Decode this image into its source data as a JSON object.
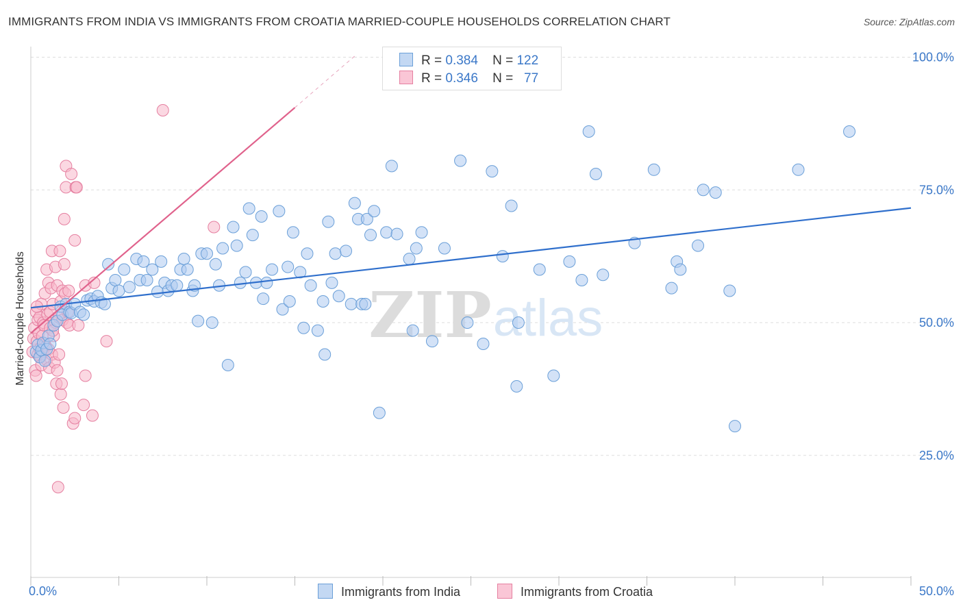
{
  "title": "IMMIGRANTS FROM INDIA VS IMMIGRANTS FROM CROATIA MARRIED-COUPLE HOUSEHOLDS CORRELATION CHART",
  "source": "Source: ZipAtlas.com",
  "watermark": {
    "zip": "ZIP",
    "atlas": "atlas"
  },
  "legend_top": {
    "rows": [
      {
        "r_label": "R =",
        "r_value": "0.384",
        "n_label": "N =",
        "n_value": "122"
      },
      {
        "r_label": "R =",
        "r_value": "0.346",
        "n_label": "N =",
        "n_value": "77"
      }
    ]
  },
  "colors": {
    "india_fill": "#aecbf0",
    "india_stroke": "#6a9fd8",
    "india_line": "#2f6fcc",
    "croatia_fill": "#f7b8cb",
    "croatia_stroke": "#e57fa0",
    "croatia_line": "#e0628c",
    "axis_text": "#3b78c8",
    "grid": "#dddddd"
  },
  "chart_data": {
    "type": "scatter",
    "title": "IMMIGRANTS FROM INDIA VS IMMIGRANTS FROM CROATIA MARRIED-COUPLE HOUSEHOLDS CORRELATION CHART",
    "xlabel": "",
    "ylabel": "Married-couple Households",
    "xlim": [
      0,
      50
    ],
    "ylim": [
      2,
      102
    ],
    "x_tick_labels": [
      "0.0%",
      "50.0%"
    ],
    "y_ticks": [
      25,
      50,
      75,
      100
    ],
    "y_tick_labels": [
      "25.0%",
      "50.0%",
      "75.0%",
      "100.0%"
    ],
    "grid": true,
    "legend_position": "bottom",
    "series": [
      {
        "name": "Immigrants from India",
        "r": 0.384,
        "n": 122,
        "trend": {
          "x": [
            0,
            50
          ],
          "y": [
            52.8,
            71.6
          ]
        },
        "points": [
          [
            0.3,
            44.5
          ],
          [
            0.4,
            45.8
          ],
          [
            0.5,
            43.5
          ],
          [
            0.6,
            44.8
          ],
          [
            0.7,
            46.2
          ],
          [
            0.8,
            42.8
          ],
          [
            0.9,
            45.0
          ],
          [
            1.0,
            47.5
          ],
          [
            1.1,
            46.0
          ],
          [
            1.3,
            49.5
          ],
          [
            1.5,
            50.3
          ],
          [
            1.7,
            53.0
          ],
          [
            1.8,
            51.5
          ],
          [
            2.0,
            53.5
          ],
          [
            2.2,
            52.0
          ],
          [
            2.3,
            51.8
          ],
          [
            2.5,
            53.5
          ],
          [
            2.8,
            52.0
          ],
          [
            3.0,
            51.5
          ],
          [
            3.2,
            54.2
          ],
          [
            3.4,
            54.5
          ],
          [
            3.6,
            54.0
          ],
          [
            3.8,
            55.0
          ],
          [
            4.0,
            53.8
          ],
          [
            4.2,
            53.5
          ],
          [
            4.4,
            61.0
          ],
          [
            4.6,
            56.5
          ],
          [
            4.8,
            58.0
          ],
          [
            5.0,
            56.0
          ],
          [
            5.3,
            60.0
          ],
          [
            5.6,
            56.7
          ],
          [
            6.0,
            62.0
          ],
          [
            6.2,
            58.0
          ],
          [
            6.4,
            61.5
          ],
          [
            6.6,
            58.0
          ],
          [
            6.9,
            60.0
          ],
          [
            7.2,
            55.8
          ],
          [
            7.4,
            61.5
          ],
          [
            7.6,
            57.5
          ],
          [
            7.8,
            56.0
          ],
          [
            8.0,
            57.0
          ],
          [
            8.3,
            57.0
          ],
          [
            8.5,
            60.0
          ],
          [
            8.7,
            62.0
          ],
          [
            8.9,
            60.0
          ],
          [
            9.2,
            56.0
          ],
          [
            9.3,
            57.0
          ],
          [
            9.5,
            50.3
          ],
          [
            9.7,
            63.0
          ],
          [
            10.0,
            63.0
          ],
          [
            10.3,
            50.0
          ],
          [
            10.5,
            61.0
          ],
          [
            10.7,
            57.0
          ],
          [
            10.9,
            64.0
          ],
          [
            11.2,
            42.0
          ],
          [
            11.5,
            68.0
          ],
          [
            11.7,
            64.5
          ],
          [
            11.9,
            57.5
          ],
          [
            12.2,
            59.5
          ],
          [
            12.4,
            71.5
          ],
          [
            12.6,
            66.5
          ],
          [
            12.8,
            57.5
          ],
          [
            13.1,
            70.0
          ],
          [
            13.2,
            54.5
          ],
          [
            13.4,
            57.5
          ],
          [
            13.7,
            60.0
          ],
          [
            14.1,
            71.0
          ],
          [
            14.3,
            52.5
          ],
          [
            14.6,
            60.5
          ],
          [
            14.7,
            54.0
          ],
          [
            14.9,
            67.0
          ],
          [
            15.3,
            59.5
          ],
          [
            15.5,
            49.0
          ],
          [
            15.7,
            63.0
          ],
          [
            15.9,
            57.0
          ],
          [
            16.3,
            48.5
          ],
          [
            16.6,
            54.0
          ],
          [
            16.7,
            44.0
          ],
          [
            16.9,
            69.0
          ],
          [
            17.1,
            57.5
          ],
          [
            17.3,
            63.0
          ],
          [
            17.5,
            55.0
          ],
          [
            17.9,
            63.5
          ],
          [
            18.2,
            53.5
          ],
          [
            18.4,
            72.5
          ],
          [
            18.6,
            69.5
          ],
          [
            18.8,
            53.5
          ],
          [
            19.1,
            69.5
          ],
          [
            19.3,
            66.5
          ],
          [
            19.5,
            71.0
          ],
          [
            19.0,
            53.5
          ],
          [
            19.8,
            33.0
          ],
          [
            20.2,
            67.0
          ],
          [
            20.5,
            79.5
          ],
          [
            20.8,
            66.7
          ],
          [
            21.5,
            62.0
          ],
          [
            21.7,
            48.5
          ],
          [
            21.9,
            64.0
          ],
          [
            22.2,
            67.0
          ],
          [
            22.8,
            46.5
          ],
          [
            23.5,
            64.0
          ],
          [
            24.4,
            80.5
          ],
          [
            24.8,
            50.0
          ],
          [
            25.7,
            46.0
          ],
          [
            26.2,
            78.5
          ],
          [
            26.8,
            62.5
          ],
          [
            27.3,
            72.0
          ],
          [
            27.6,
            38.0
          ],
          [
            27.7,
            50.0
          ],
          [
            28.9,
            60.0
          ],
          [
            29.7,
            40.0
          ],
          [
            30.6,
            61.5
          ],
          [
            31.3,
            58.0
          ],
          [
            31.7,
            86.0
          ],
          [
            32.1,
            78.0
          ],
          [
            32.5,
            59.0
          ],
          [
            34.3,
            65.0
          ],
          [
            35.4,
            78.8
          ],
          [
            36.4,
            56.5
          ],
          [
            36.7,
            61.5
          ],
          [
            36.9,
            60.0
          ],
          [
            37.9,
            64.5
          ],
          [
            38.2,
            75.0
          ],
          [
            38.9,
            74.5
          ],
          [
            39.7,
            56.0
          ],
          [
            40.0,
            30.5
          ],
          [
            43.6,
            78.8
          ],
          [
            46.5,
            86.0
          ]
        ]
      },
      {
        "name": "Immigrants from Croatia",
        "r": 0.346,
        "n": 77,
        "trend": {
          "x": [
            0,
            15
          ],
          "y": [
            48.0,
            90.5
          ]
        },
        "trend_dashed": {
          "x": [
            15,
            18.5
          ],
          "y": [
            90.5,
            100.5
          ]
        },
        "points": [
          [
            0.1,
            44.5
          ],
          [
            0.15,
            47.0
          ],
          [
            0.2,
            49.0
          ],
          [
            0.25,
            41.0
          ],
          [
            0.3,
            40.0
          ],
          [
            0.3,
            52.0
          ],
          [
            0.35,
            46.5
          ],
          [
            0.4,
            44.0
          ],
          [
            0.4,
            50.5
          ],
          [
            0.45,
            48.0
          ],
          [
            0.5,
            45.0
          ],
          [
            0.5,
            51.0
          ],
          [
            0.55,
            43.5
          ],
          [
            0.6,
            53.5
          ],
          [
            0.6,
            42.0
          ],
          [
            0.65,
            47.5
          ],
          [
            0.7,
            44.5
          ],
          [
            0.7,
            50.0
          ],
          [
            0.75,
            49.5
          ],
          [
            0.8,
            46.0
          ],
          [
            0.8,
            55.5
          ],
          [
            0.85,
            45.5
          ],
          [
            0.9,
            60.0
          ],
          [
            0.9,
            43.0
          ],
          [
            0.95,
            51.5
          ],
          [
            1.0,
            57.5
          ],
          [
            1.0,
            45.0
          ],
          [
            1.05,
            41.5
          ],
          [
            1.1,
            52.0
          ],
          [
            1.1,
            49.0
          ],
          [
            1.15,
            56.5
          ],
          [
            1.2,
            63.5
          ],
          [
            1.2,
            44.0
          ],
          [
            1.25,
            53.5
          ],
          [
            1.3,
            47.5
          ],
          [
            1.35,
            42.5
          ],
          [
            1.4,
            60.5
          ],
          [
            1.4,
            50.0
          ],
          [
            1.45,
            38.5
          ],
          [
            1.5,
            57.0
          ],
          [
            1.5,
            41.0
          ],
          [
            1.55,
            19.0
          ],
          [
            1.6,
            51.0
          ],
          [
            1.6,
            44.0
          ],
          [
            1.65,
            63.5
          ],
          [
            1.7,
            36.5
          ],
          [
            1.7,
            54.0
          ],
          [
            1.75,
            38.5
          ],
          [
            1.8,
            56.0
          ],
          [
            1.8,
            50.5
          ],
          [
            1.85,
            34.0
          ],
          [
            1.9,
            69.5
          ],
          [
            1.9,
            61.0
          ],
          [
            1.95,
            55.5
          ],
          [
            2.0,
            79.5
          ],
          [
            2.0,
            75.5
          ],
          [
            2.05,
            50.0
          ],
          [
            2.1,
            52.0
          ],
          [
            2.15,
            56.0
          ],
          [
            2.2,
            49.5
          ],
          [
            2.3,
            78.0
          ],
          [
            2.4,
            31.0
          ],
          [
            2.5,
            32.0
          ],
          [
            2.5,
            65.5
          ],
          [
            2.55,
            75.5
          ],
          [
            2.6,
            75.5
          ],
          [
            2.7,
            49.5
          ],
          [
            3.0,
            34.5
          ],
          [
            3.1,
            40.0
          ],
          [
            3.1,
            57.0
          ],
          [
            3.5,
            32.5
          ],
          [
            3.6,
            57.5
          ],
          [
            4.3,
            46.5
          ],
          [
            7.5,
            90.0
          ],
          [
            10.4,
            68.0
          ],
          [
            0.35,
            53.0
          ],
          [
            1.25,
            48.5
          ]
        ]
      }
    ]
  },
  "legend_bottom": {
    "items": [
      "Immigrants from India",
      "Immigrants from Croatia"
    ]
  }
}
